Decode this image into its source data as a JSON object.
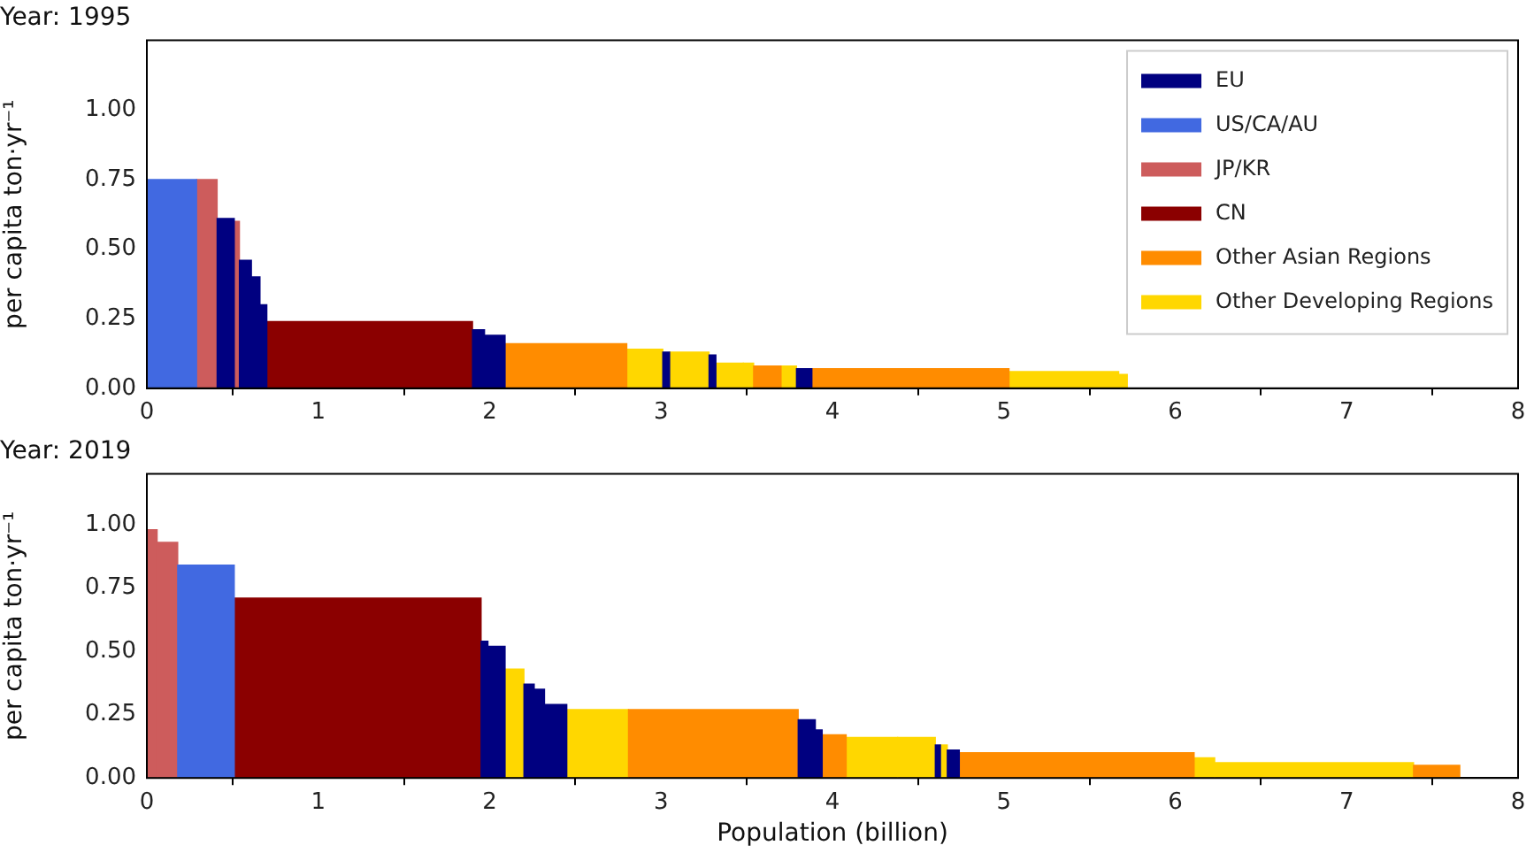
{
  "chart_data": [
    {
      "type": "histogram",
      "title": "Year: 1995",
      "ylabel": "per capita ton·yr⁻¹",
      "bins": [
        0,
        0.29,
        0.41,
        0.51,
        0.54,
        0.61,
        0.66,
        0.7,
        1.9,
        1.97,
        2.09,
        2.8,
        3.01,
        3.05,
        3.28,
        3.32,
        3.48,
        3.54,
        3.7,
        3.79,
        3.88,
        4.84,
        5.03,
        5.67,
        5.72
      ],
      "series": [
        {
          "name": "EU",
          "color": "#000080",
          "values": [
            null,
            null,
            0.61,
            null,
            0.46,
            0.4,
            0.3,
            null,
            0.21,
            0.19,
            null,
            null,
            0.13,
            null,
            0.12,
            null,
            null,
            null,
            null,
            0.07,
            null,
            null,
            null,
            null
          ]
        },
        {
          "name": "US/CA/AU",
          "color": "#4169e1",
          "values": [
            0.75,
            null,
            null,
            null,
            null,
            null,
            null,
            null,
            null,
            null,
            null,
            null,
            null,
            null,
            null,
            null,
            null,
            null,
            null,
            null,
            null,
            null,
            null,
            null
          ]
        },
        {
          "name": "JP/KR",
          "color": "#cd5c5c",
          "values": [
            null,
            0.75,
            null,
            0.6,
            null,
            null,
            null,
            null,
            null,
            null,
            null,
            null,
            null,
            null,
            null,
            null,
            null,
            null,
            null,
            null,
            null,
            null,
            null,
            null
          ]
        },
        {
          "name": "CN",
          "color": "#8b0000",
          "values": [
            null,
            null,
            null,
            null,
            null,
            null,
            null,
            0.24,
            null,
            null,
            null,
            null,
            null,
            null,
            null,
            null,
            null,
            null,
            null,
            null,
            null,
            null,
            null,
            null
          ]
        },
        {
          "name": "Other Asian Regions",
          "color": "#ff8c00",
          "values": [
            null,
            null,
            null,
            null,
            null,
            null,
            null,
            null,
            null,
            null,
            0.16,
            null,
            null,
            null,
            null,
            null,
            null,
            0.08,
            null,
            null,
            0.07,
            0.07,
            null,
            null
          ]
        },
        {
          "name": "Other Developing Regions",
          "color": "#ffd700",
          "values": [
            null,
            null,
            null,
            null,
            null,
            null,
            null,
            null,
            null,
            null,
            null,
            0.14,
            null,
            0.13,
            null,
            0.09,
            0.09,
            null,
            0.08,
            null,
            null,
            null,
            0.06,
            0.05
          ]
        }
      ],
      "xlim": [
        0,
        8
      ],
      "xticks": [
        0,
        1,
        2,
        3,
        4,
        5,
        6,
        7,
        8
      ],
      "ylim": [
        0,
        1.25
      ],
      "yticks": [
        {
          "value": 0,
          "label": "0.00"
        },
        {
          "value": 0.25,
          "label": "0.25"
        },
        {
          "value": 0.5,
          "label": "0.50"
        },
        {
          "value": 0.75,
          "label": "0.75"
        },
        {
          "value": 1,
          "label": "1.00"
        }
      ],
      "legend": "top right"
    },
    {
      "type": "histogram",
      "title": "Year: 2019",
      "ylabel": "per capita ton·yr⁻¹",
      "xlabel": "Population (billion)",
      "bins": [
        0,
        0.06,
        0.18,
        0.51,
        1.95,
        1.99,
        2.09,
        2.2,
        2.26,
        2.32,
        2.45,
        2.81,
        3.8,
        3.9,
        3.94,
        4.08,
        4.38,
        4.6,
        4.63,
        4.67,
        4.74,
        6.11,
        6.23,
        7.39,
        7.66
      ],
      "series": [
        {
          "color": "#000080",
          "values": [
            null,
            null,
            null,
            null,
            0.54,
            0.52,
            null,
            0.37,
            0.35,
            0.29,
            null,
            null,
            0.23,
            0.19,
            null,
            null,
            null,
            0.13,
            null,
            0.11,
            null,
            null,
            null,
            null
          ]
        },
        {
          "color": "#4169e1",
          "values": [
            null,
            null,
            0.84,
            null,
            null,
            null,
            null,
            null,
            null,
            null,
            null,
            null,
            null,
            null,
            null,
            null,
            null,
            null,
            null,
            null,
            null,
            null,
            null,
            null
          ]
        },
        {
          "color": "#cd5c5c",
          "values": [
            0.98,
            0.93,
            null,
            null,
            null,
            null,
            null,
            null,
            null,
            null,
            null,
            null,
            null,
            null,
            null,
            null,
            null,
            null,
            null,
            null,
            null,
            null,
            null,
            null
          ]
        },
        {
          "color": "#8b0000",
          "values": [
            null,
            null,
            null,
            0.71,
            null,
            null,
            null,
            null,
            null,
            null,
            null,
            null,
            null,
            null,
            null,
            null,
            null,
            null,
            null,
            null,
            null,
            null,
            null,
            null
          ]
        },
        {
          "color": "#ff8c00",
          "values": [
            null,
            null,
            null,
            null,
            null,
            null,
            null,
            null,
            null,
            null,
            null,
            0.27,
            null,
            null,
            0.17,
            null,
            null,
            null,
            null,
            null,
            0.1,
            null,
            null,
            0.05
          ]
        },
        {
          "color": "#ffd700",
          "values": [
            null,
            null,
            null,
            null,
            null,
            null,
            0.43,
            null,
            null,
            null,
            0.27,
            null,
            null,
            null,
            null,
            0.16,
            0.16,
            null,
            0.13,
            null,
            null,
            0.08,
            0.06,
            null
          ]
        }
      ],
      "xlim": [
        0,
        8
      ],
      "xticks": [
        0,
        1,
        2,
        3,
        4,
        5,
        6,
        7,
        8
      ],
      "ylim": [
        0,
        1.2
      ],
      "yticks": [
        {
          "value": 0,
          "label": "0.00"
        },
        {
          "value": 0.25,
          "label": "0.25"
        },
        {
          "value": 0.5,
          "label": "0.50"
        },
        {
          "value": 0.75,
          "label": "0.75"
        },
        {
          "value": 1,
          "label": "1.00"
        }
      ]
    }
  ]
}
